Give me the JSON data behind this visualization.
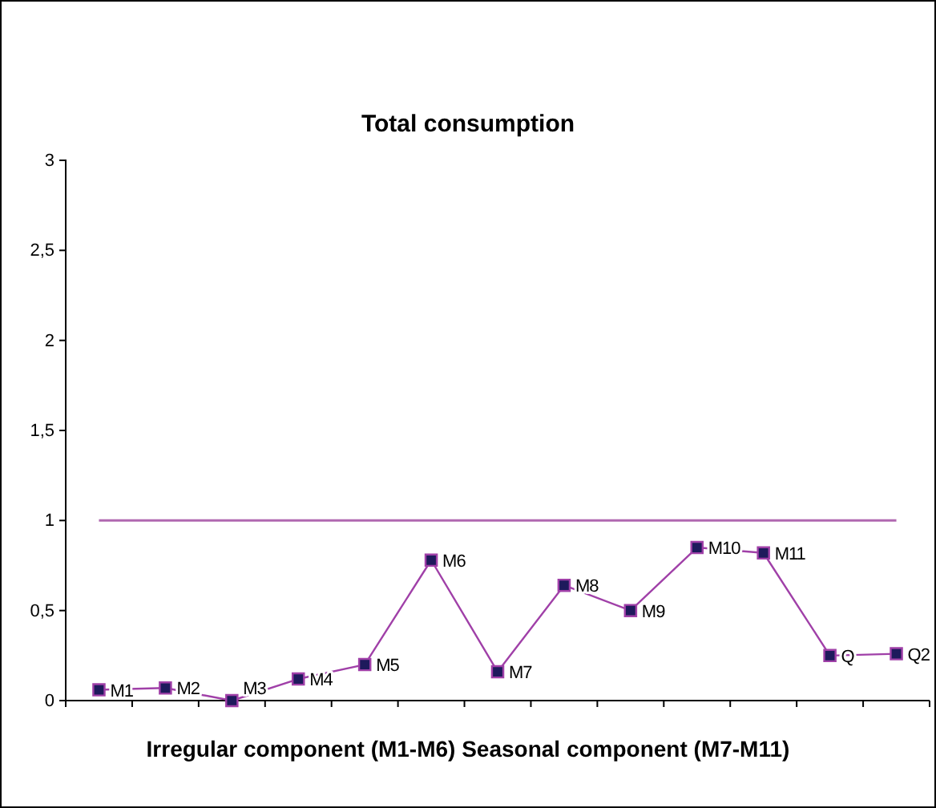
{
  "chart_data": {
    "type": "line",
    "title": "Total consumption",
    "xlabel": "Irregular component (M1-M6)  Seasonal component (M7-M11)",
    "categories": [
      "M1",
      "M2",
      "M3",
      "M4",
      "M5",
      "M6",
      "M7",
      "M8",
      "M9",
      "M10",
      "M11",
      "Q",
      "Q2"
    ],
    "series": [
      {
        "color": "#a040a8",
        "values": [
          0.06,
          0.07,
          0,
          0.12,
          0.2,
          0.78,
          0.16,
          0.64,
          0.5,
          0.85,
          0.82,
          0.25,
          0.26
        ]
      }
    ],
    "ylim": [
      0,
      3
    ],
    "yticks": [
      {
        "value": 0,
        "label": "0"
      },
      {
        "value": 0.5,
        "label": "0,5"
      },
      {
        "value": 1,
        "label": "1"
      },
      {
        "value": 1.5,
        "label": "1,5"
      },
      {
        "value": 2,
        "label": "2"
      },
      {
        "value": 2.5,
        "label": "2,5"
      },
      {
        "value": 3,
        "label": "3"
      }
    ],
    "ref_lines": [
      {
        "axis": "y",
        "value": 1,
        "color": "#b068b0"
      }
    ],
    "marker": "square",
    "tick_labels": "y",
    "grid": false
  }
}
